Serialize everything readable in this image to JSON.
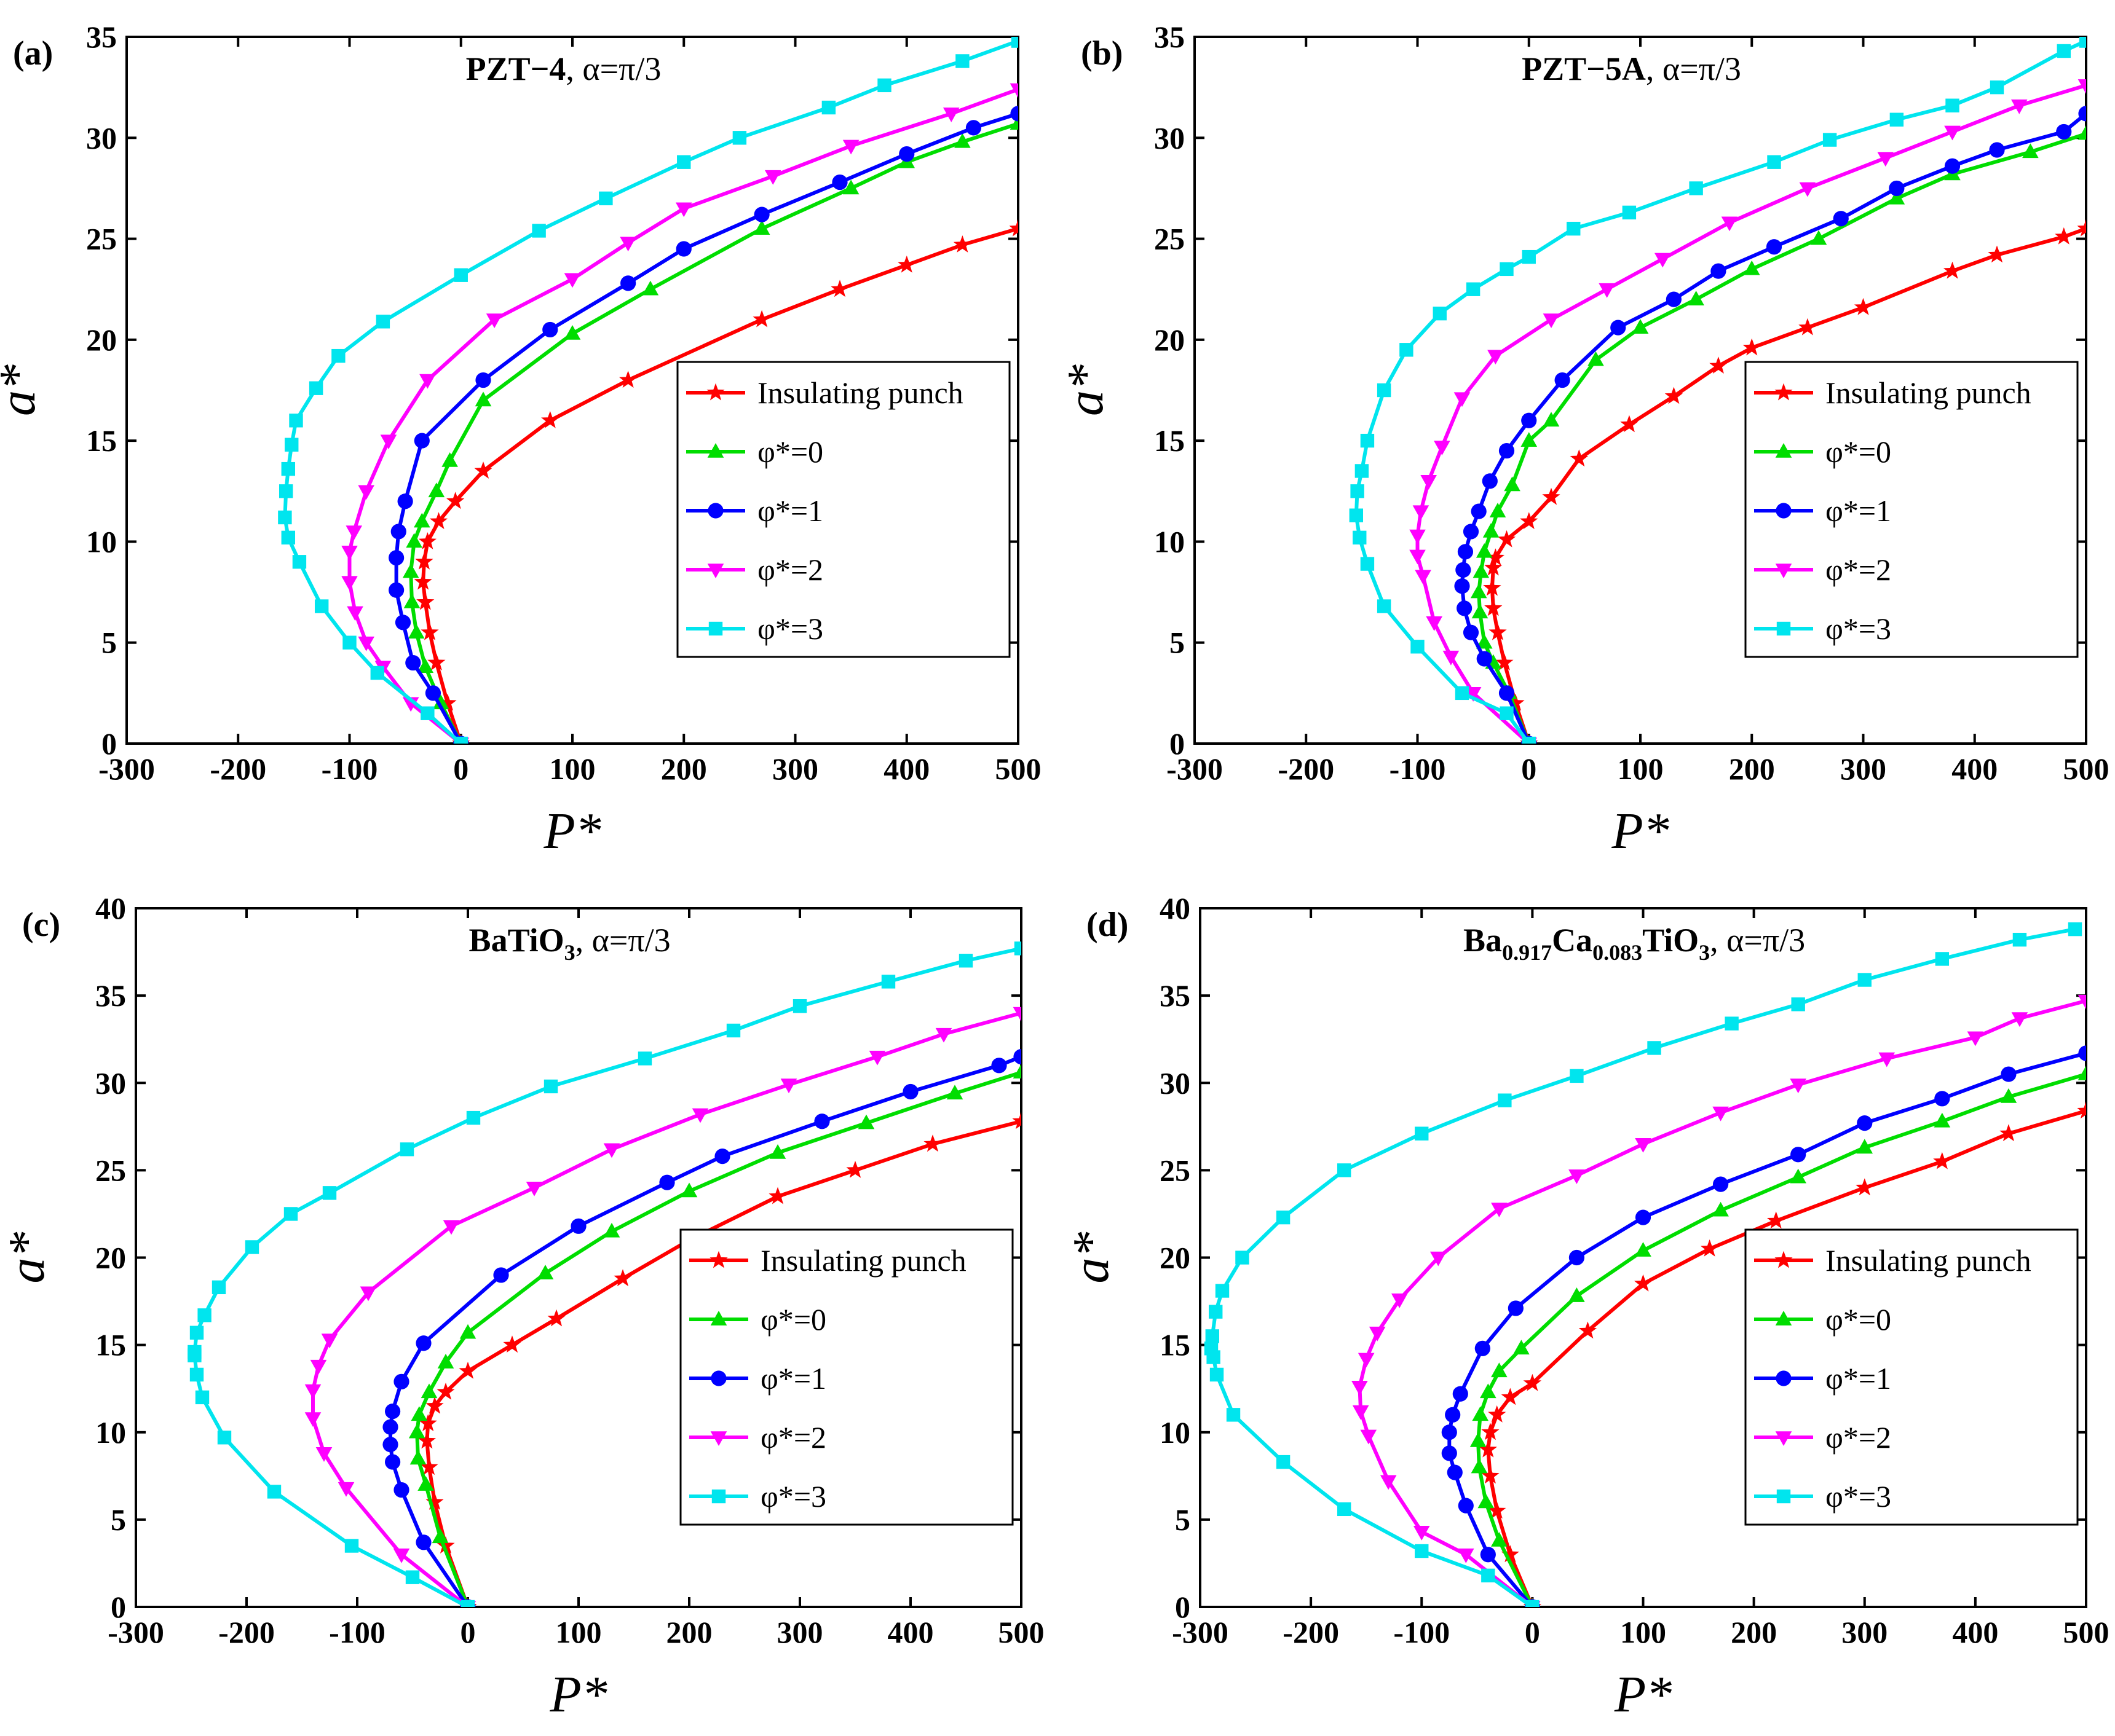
{
  "colors": {
    "insulating": "#ff0000",
    "phi0": "#00dd00",
    "phi1": "#0000ff",
    "phi2": "#ff00ff",
    "phi3": "#00e5ee",
    "axis": "#000000"
  },
  "chart_data": [
    {
      "panel_label": "(a)",
      "type": "line",
      "title_main": "PZT−4",
      "title_sub": "",
      "title_tail": "",
      "title_suffix": ", α=π/3",
      "xlabel": "P*",
      "ylabel": "a*",
      "xlim": [
        -300,
        500
      ],
      "ylim": [
        0,
        35
      ],
      "xticks": [
        -300,
        -200,
        -100,
        0,
        100,
        200,
        300,
        400,
        500
      ],
      "yticks": [
        0,
        5,
        10,
        15,
        20,
        25,
        30,
        35
      ],
      "legend_position": "right-middle",
      "series": [
        {
          "name": "Insulating punch",
          "color": "#ff0000",
          "marker": "star",
          "x": [
            0,
            -12,
            -22,
            -28,
            -32,
            -34,
            -33,
            -30,
            -20,
            -5,
            20,
            80,
            150,
            270,
            340,
            400,
            450,
            500
          ],
          "y": [
            0,
            2,
            4,
            5.5,
            7,
            8,
            9,
            10,
            11,
            12,
            13.5,
            16,
            18,
            21,
            22.5,
            23.7,
            24.7,
            25.5
          ]
        },
        {
          "name": "φ*=0",
          "color": "#00dd00",
          "marker": "triangle-up",
          "x": [
            0,
            -18,
            -32,
            -40,
            -44,
            -45,
            -42,
            -35,
            -22,
            -10,
            20,
            100,
            170,
            270,
            350,
            400,
            450,
            500
          ],
          "y": [
            0,
            2,
            3.8,
            5.5,
            7,
            8.5,
            10,
            11,
            12.5,
            14,
            17,
            20.3,
            22.5,
            25.5,
            27.5,
            28.8,
            29.8,
            30.7
          ]
        },
        {
          "name": "φ*=1",
          "color": "#0000ff",
          "marker": "circle",
          "x": [
            0,
            -25,
            -43,
            -52,
            -58,
            -58,
            -56,
            -50,
            -35,
            20,
            80,
            150,
            200,
            270,
            340,
            400,
            460,
            500
          ],
          "y": [
            0,
            2.5,
            4,
            6,
            7.6,
            9.2,
            10.5,
            12,
            15,
            18,
            20.5,
            22.8,
            24.5,
            26.2,
            27.8,
            29.2,
            30.5,
            31.2
          ]
        },
        {
          "name": "φ*=2",
          "color": "#ff00ff",
          "marker": "triangle-down",
          "x": [
            0,
            -45,
            -70,
            -85,
            -95,
            -100,
            -100,
            -96,
            -85,
            -65,
            -30,
            30,
            100,
            150,
            200,
            280,
            350,
            440,
            500
          ],
          "y": [
            0,
            2,
            3.8,
            5,
            6.5,
            8,
            9.5,
            10.5,
            12.5,
            15,
            18,
            21,
            23,
            24.8,
            26.5,
            28.1,
            29.6,
            31.2,
            32.4
          ]
        },
        {
          "name": "φ*=3",
          "color": "#00e5ee",
          "marker": "square",
          "x": [
            0,
            -30,
            -75,
            -100,
            -125,
            -145,
            -155,
            -158,
            -157,
            -155,
            -152,
            -148,
            -130,
            -110,
            -70,
            0,
            70,
            130,
            200,
            250,
            330,
            380,
            450,
            500
          ],
          "y": [
            0,
            1.5,
            3.5,
            5,
            6.8,
            9,
            10.2,
            11.2,
            12.5,
            13.6,
            14.8,
            16,
            17.6,
            19.2,
            20.9,
            23.2,
            25.4,
            27,
            28.8,
            30,
            31.5,
            32.6,
            33.8,
            34.8
          ]
        }
      ]
    },
    {
      "panel_label": "(b)",
      "type": "line",
      "title_main": "PZT−5A",
      "title_sub": "",
      "title_tail": "",
      "title_suffix": ", α=π/3",
      "xlabel": "P*",
      "ylabel": "a*",
      "xlim": [
        -300,
        500
      ],
      "ylim": [
        0,
        35
      ],
      "xticks": [
        -300,
        -200,
        -100,
        0,
        100,
        200,
        300,
        400,
        500
      ],
      "yticks": [
        0,
        5,
        10,
        15,
        20,
        25,
        30,
        35
      ],
      "legend_position": "right-middle",
      "series": [
        {
          "name": "Insulating punch",
          "color": "#ff0000",
          "marker": "star",
          "x": [
            0,
            -12,
            -22,
            -28,
            -32,
            -33,
            -32,
            -30,
            -20,
            0,
            20,
            45,
            90,
            130,
            170,
            200,
            250,
            300,
            380,
            420,
            480,
            500
          ],
          "y": [
            0,
            2,
            4,
            5.5,
            6.7,
            7.7,
            8.7,
            9.2,
            10.1,
            11,
            12.2,
            14.1,
            15.8,
            17.2,
            18.7,
            19.6,
            20.6,
            21.6,
            23.4,
            24.2,
            25.1,
            25.5
          ]
        },
        {
          "name": "φ*=0",
          "color": "#00dd00",
          "marker": "triangle-up",
          "x": [
            0,
            -18,
            -32,
            -40,
            -44,
            -45,
            -43,
            -40,
            -34,
            -28,
            -15,
            0,
            20,
            60,
            100,
            150,
            200,
            260,
            330,
            380,
            450,
            500
          ],
          "y": [
            0,
            2.5,
            4,
            5,
            6.5,
            7.5,
            8.5,
            9.5,
            10.5,
            11.5,
            12.8,
            15,
            16,
            19,
            20.6,
            22,
            23.5,
            25,
            27,
            28.2,
            29.3,
            30.2
          ]
        },
        {
          "name": "φ*=1",
          "color": "#0000ff",
          "marker": "circle",
          "x": [
            0,
            -20,
            -40,
            -52,
            -58,
            -60,
            -59,
            -57,
            -52,
            -45,
            -35,
            -20,
            0,
            30,
            80,
            130,
            170,
            220,
            280,
            330,
            380,
            420,
            480,
            500
          ],
          "y": [
            0,
            2.5,
            4.2,
            5.5,
            6.7,
            7.8,
            8.6,
            9.5,
            10.5,
            11.5,
            13,
            14.5,
            16,
            18,
            20.6,
            22,
            23.4,
            24.6,
            26,
            27.5,
            28.6,
            29.4,
            30.3,
            31.2
          ]
        },
        {
          "name": "φ*=2",
          "color": "#ff00ff",
          "marker": "triangle-down",
          "x": [
            0,
            -50,
            -70,
            -85,
            -95,
            -100,
            -100,
            -97,
            -90,
            -78,
            -60,
            -30,
            20,
            70,
            120,
            180,
            250,
            320,
            380,
            440,
            500
          ],
          "y": [
            0,
            2.5,
            4.3,
            6,
            8.3,
            9.3,
            10.3,
            11.5,
            13,
            14.7,
            17.1,
            19.2,
            21,
            22.5,
            24,
            25.8,
            27.5,
            29,
            30.3,
            31.6,
            32.6
          ]
        },
        {
          "name": "φ*=3",
          "color": "#00e5ee",
          "marker": "square",
          "x": [
            0,
            -20,
            -60,
            -100,
            -130,
            -145,
            -152,
            -155,
            -154,
            -150,
            -145,
            -130,
            -110,
            -80,
            -50,
            -20,
            0,
            40,
            90,
            150,
            220,
            270,
            330,
            380,
            420,
            480,
            500
          ],
          "y": [
            0,
            1.5,
            2.5,
            4.8,
            6.8,
            8.9,
            10.2,
            11.3,
            12.5,
            13.5,
            15,
            17.5,
            19.5,
            21.3,
            22.5,
            23.5,
            24.1,
            25.5,
            26.3,
            27.5,
            28.8,
            29.9,
            30.9,
            31.6,
            32.5,
            34.3,
            34.8
          ]
        }
      ]
    },
    {
      "panel_label": "(c)",
      "type": "line",
      "title_main": "BaTiO",
      "title_sub": "3",
      "title_tail": "",
      "title_suffix": ", α=π/3",
      "xlabel": "P*",
      "ylabel": "a*",
      "xlim": [
        -300,
        500
      ],
      "ylim": [
        0,
        40
      ],
      "xticks": [
        -300,
        -200,
        -100,
        0,
        100,
        200,
        300,
        400,
        500
      ],
      "yticks": [
        0,
        5,
        10,
        15,
        20,
        25,
        30,
        35,
        40
      ],
      "legend_position": "right-middle",
      "series": [
        {
          "name": "Insulating punch",
          "color": "#ff0000",
          "marker": "star",
          "x": [
            0,
            -20,
            -30,
            -35,
            -37,
            -36,
            -30,
            -20,
            0,
            40,
            80,
            140,
            200,
            280,
            350,
            420,
            500
          ],
          "y": [
            0,
            3.5,
            6,
            8,
            9.5,
            10.5,
            11.5,
            12.3,
            13.5,
            15,
            16.5,
            18.8,
            21,
            23.5,
            25,
            26.5,
            27.8
          ]
        },
        {
          "name": "φ*=0",
          "color": "#00dd00",
          "marker": "triangle-up",
          "x": [
            0,
            -25,
            -38,
            -45,
            -46,
            -44,
            -35,
            -20,
            0,
            70,
            130,
            200,
            280,
            360,
            440,
            500
          ],
          "y": [
            0,
            4,
            7,
            8.5,
            10,
            11,
            12.3,
            14,
            15.7,
            19.1,
            21.5,
            23.8,
            26,
            27.7,
            29.4,
            30.6
          ]
        },
        {
          "name": "φ*=1",
          "color": "#0000ff",
          "marker": "circle",
          "x": [
            0,
            -40,
            -60,
            -68,
            -70,
            -70,
            -68,
            -60,
            -40,
            30,
            100,
            180,
            230,
            320,
            400,
            480,
            500
          ],
          "y": [
            0,
            3.7,
            6.7,
            8.3,
            9.3,
            10.3,
            11.2,
            12.9,
            15.1,
            19,
            21.8,
            24.3,
            25.8,
            27.8,
            29.5,
            31,
            31.5
          ]
        },
        {
          "name": "φ*=2",
          "color": "#ff00ff",
          "marker": "triangle-down",
          "x": [
            0,
            -60,
            -110,
            -130,
            -140,
            -140,
            -135,
            -125,
            -90,
            -15,
            60,
            130,
            210,
            290,
            370,
            430,
            500
          ],
          "y": [
            0,
            3,
            6.8,
            8.8,
            10.8,
            12.4,
            13.8,
            15.3,
            18,
            21.8,
            24,
            26.2,
            28.2,
            29.9,
            31.5,
            32.8,
            34
          ]
        },
        {
          "name": "φ*=3",
          "color": "#00e5ee",
          "marker": "square",
          "x": [
            0,
            -50,
            -105,
            -175,
            -220,
            -240,
            -245,
            -247,
            -247,
            -245,
            -238,
            -225,
            -195,
            -160,
            -125,
            -55,
            5,
            75,
            160,
            240,
            300,
            380,
            450,
            500
          ],
          "y": [
            0,
            1.7,
            3.5,
            6.6,
            9.7,
            12,
            13.3,
            14.4,
            14.6,
            15.7,
            16.7,
            18.3,
            20.6,
            22.5,
            23.7,
            26.2,
            28,
            29.8,
            31.4,
            33,
            34.4,
            35.8,
            37,
            37.7
          ]
        }
      ]
    },
    {
      "panel_label": "(d)",
      "type": "line",
      "title_main": "Ba",
      "title_sub": "0.917",
      "title_tail": "Ca",
      "title_sub2": "0.083",
      "title_tail2": "TiO",
      "title_sub3": "3",
      "title_suffix": ", α=π/3",
      "xlabel": "P*",
      "ylabel": "a*",
      "xlim": [
        -300,
        500
      ],
      "ylim": [
        0,
        40
      ],
      "xticks": [
        -300,
        -200,
        -100,
        0,
        100,
        200,
        300,
        400,
        500
      ],
      "yticks": [
        0,
        5,
        10,
        15,
        20,
        25,
        30,
        35,
        40
      ],
      "legend_position": "right-middle",
      "series": [
        {
          "name": "Insulating punch",
          "color": "#ff0000",
          "marker": "star",
          "x": [
            0,
            -20,
            -32,
            -38,
            -40,
            -38,
            -32,
            -20,
            0,
            50,
            100,
            160,
            220,
            300,
            370,
            430,
            500
          ],
          "y": [
            0,
            3,
            5.5,
            7.5,
            9,
            10,
            11,
            12,
            12.8,
            15.8,
            18.5,
            20.5,
            22.1,
            24,
            25.5,
            27.1,
            28.4
          ]
        },
        {
          "name": "φ*=0",
          "color": "#00dd00",
          "marker": "triangle-up",
          "x": [
            0,
            -30,
            -42,
            -48,
            -49,
            -47,
            -40,
            -30,
            -10,
            40,
            100,
            170,
            240,
            300,
            370,
            430,
            500
          ],
          "y": [
            0,
            3.8,
            6,
            8,
            9.5,
            11,
            12.3,
            13.5,
            14.8,
            17.8,
            20.4,
            22.7,
            24.6,
            26.3,
            27.8,
            29.2,
            30.5
          ]
        },
        {
          "name": "φ*=1",
          "color": "#0000ff",
          "marker": "circle",
          "x": [
            0,
            -40,
            -60,
            -70,
            -75,
            -75,
            -72,
            -65,
            -45,
            -15,
            40,
            100,
            170,
            240,
            300,
            370,
            430,
            500
          ],
          "y": [
            0,
            3,
            5.8,
            7.7,
            8.8,
            10,
            11,
            12.2,
            14.8,
            17.1,
            20,
            22.3,
            24.2,
            25.9,
            27.7,
            29.1,
            30.5,
            31.7
          ]
        },
        {
          "name": "φ*=2",
          "color": "#ff00ff",
          "marker": "triangle-down",
          "x": [
            0,
            -60,
            -100,
            -130,
            -148,
            -155,
            -156,
            -150,
            -140,
            -120,
            -85,
            -30,
            40,
            100,
            170,
            240,
            320,
            400,
            440,
            500
          ],
          "y": [
            0,
            3,
            4.3,
            7.2,
            9.8,
            11.2,
            12.6,
            14.2,
            15.7,
            17.6,
            20,
            22.8,
            24.7,
            26.5,
            28.3,
            29.9,
            31.4,
            32.6,
            33.7,
            34.7
          ]
        },
        {
          "name": "φ*=3",
          "color": "#00e5ee",
          "marker": "square",
          "x": [
            0,
            -40,
            -100,
            -170,
            -225,
            -270,
            -285,
            -288,
            -290,
            -289,
            -286,
            -280,
            -262,
            -225,
            -170,
            -100,
            -25,
            40,
            110,
            180,
            240,
            300,
            370,
            440,
            490
          ],
          "y": [
            0,
            1.8,
            3.2,
            5.6,
            8.3,
            11,
            13.3,
            14.3,
            14.8,
            15.5,
            16.9,
            18.1,
            20,
            22.3,
            25,
            27.1,
            29,
            30.4,
            32,
            33.4,
            34.5,
            35.9,
            37.1,
            38.2,
            38.8
          ]
        }
      ]
    }
  ]
}
